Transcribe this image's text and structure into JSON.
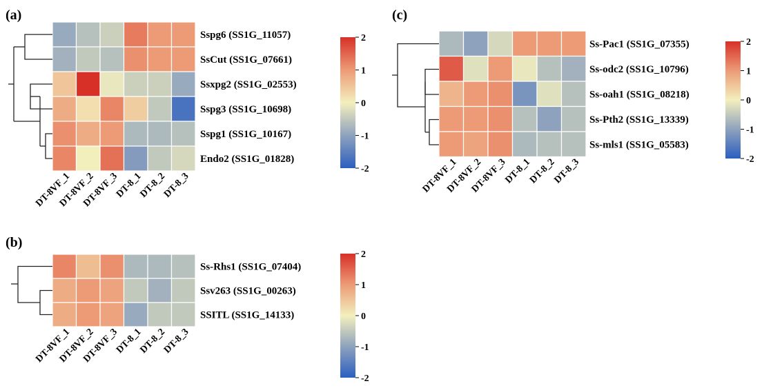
{
  "chart_data": [
    {
      "type": "heatmap",
      "panel_label": "(a)",
      "columns": [
        "DT-8VF_1",
        "DT-8VF_2",
        "DT-8VF_3",
        "DT-8_1",
        "DT-8_2",
        "DT-8_3"
      ],
      "rows": [
        "Sspg6 (SS1G_11057)",
        "SsCut (SS1G_07661)",
        "Ssxpg2 (SS1G_02553)",
        "Sspg3 (SS1G_10698)",
        "Sspg1 (SS1G_10167)",
        "Endo2 (SS1G_01828)"
      ],
      "values": [
        [
          -0.9,
          -0.6,
          -0.4,
          1.3,
          1.0,
          1.0
        ],
        [
          -0.8,
          -0.5,
          -0.6,
          1.1,
          1.0,
          1.0
        ],
        [
          0.5,
          2.0,
          -0.1,
          -0.4,
          -0.4,
          -0.9
        ],
        [
          0.8,
          0.2,
          1.2,
          0.4,
          -0.5,
          -1.7
        ],
        [
          1.1,
          0.8,
          1.0,
          -0.7,
          -0.7,
          -0.6
        ],
        [
          1.2,
          0.0,
          1.4,
          -1.1,
          -0.5,
          -0.3
        ]
      ],
      "colorbar": {
        "min": -2,
        "max": 2,
        "ticks": [
          "2",
          "1",
          "0",
          "-1",
          "-2"
        ]
      },
      "dendrogram_side": "left"
    },
    {
      "type": "heatmap",
      "panel_label": "(b)",
      "columns": [
        "DT-8VF_1",
        "DT-8VF_2",
        "DT-8VF_3",
        "DT-8_1",
        "DT-8_2",
        "DT-8_3"
      ],
      "rows": [
        "Ss-Rhs1 (SS1G_07404)",
        "Ssv263 (SS1G_00263)",
        "SSITL (SS1G_14133)"
      ],
      "values": [
        [
          1.2,
          0.6,
          1.1,
          -0.7,
          -0.7,
          -0.6
        ],
        [
          0.8,
          1.0,
          0.9,
          -0.5,
          -0.8,
          -0.5
        ],
        [
          0.8,
          1.0,
          0.9,
          -0.9,
          -0.5,
          -0.5
        ]
      ],
      "colorbar": {
        "min": -2,
        "max": 2,
        "ticks": [
          "2",
          "1",
          "0",
          "-1",
          "-2"
        ]
      },
      "dendrogram_side": "left"
    },
    {
      "type": "heatmap",
      "panel_label": "(c)",
      "columns": [
        "DT-8VF_1",
        "DT-8VF_2",
        "DT-8VF_3",
        "DT-8_1",
        "DT-8_2",
        "DT-8_3"
      ],
      "rows": [
        "Ss-Pac1 (SS1G_07355)",
        "Ss-odc2 (SS1G_10796)",
        "Ss-oah1 (SS1G_08218)",
        "Ss-Pth2 (SS1G_13339)",
        "Ss-mls1 (SS1G_05583)"
      ],
      "values": [
        [
          -0.7,
          -1.0,
          -0.3,
          1.0,
          1.0,
          1.0
        ],
        [
          1.6,
          -0.2,
          1.0,
          -0.1,
          -0.6,
          -0.8
        ],
        [
          0.7,
          1.0,
          1.1,
          -1.2,
          -0.2,
          -0.6
        ],
        [
          1.0,
          1.0,
          1.1,
          -0.6,
          -1.0,
          -0.6
        ],
        [
          1.0,
          0.9,
          1.1,
          -0.7,
          -0.6,
          -0.6
        ]
      ],
      "colorbar": {
        "min": -2,
        "max": 2,
        "ticks": [
          "2",
          "1",
          "0",
          "-1",
          "-2"
        ]
      },
      "dendrogram_side": "left"
    }
  ]
}
